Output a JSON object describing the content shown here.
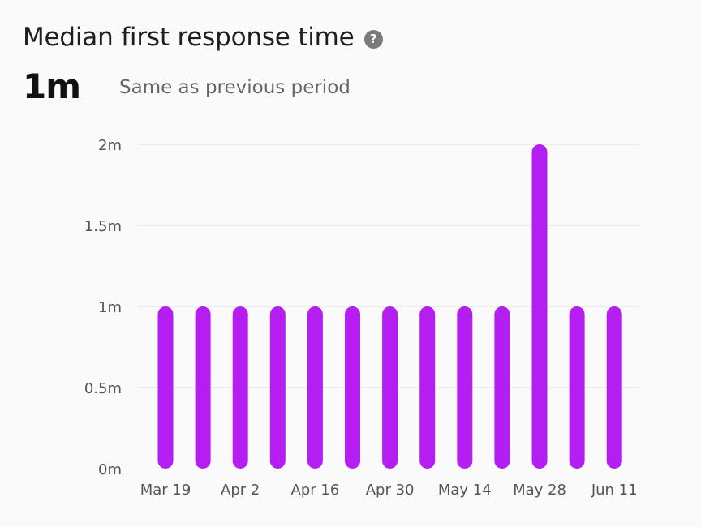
{
  "header": {
    "title": "Median first response time",
    "help_icon": "question-circle-icon"
  },
  "metric": {
    "value": "1m",
    "comparison": "Same as previous period"
  },
  "colors": {
    "bar": "#b41ef0",
    "grid": "#ececec",
    "tick_text": "#555555"
  },
  "chart_data": {
    "type": "bar",
    "title": "Median first response time",
    "xlabel": "",
    "ylabel": "",
    "unit": "minutes",
    "ylim": [
      0,
      2
    ],
    "yticks": [
      0,
      0.5,
      1,
      1.5,
      2
    ],
    "ytick_labels": [
      "0m",
      "0.5m",
      "1m",
      "1.5m",
      "2m"
    ],
    "grid": true,
    "x_tick_labels": [
      "Mar 19",
      "Apr 2",
      "Apr 16",
      "Apr 30",
      "May 14",
      "May 28",
      "Jun 11"
    ],
    "values": [
      1,
      1,
      1,
      1,
      1,
      1,
      1,
      1,
      1,
      1,
      2,
      1,
      1
    ]
  }
}
